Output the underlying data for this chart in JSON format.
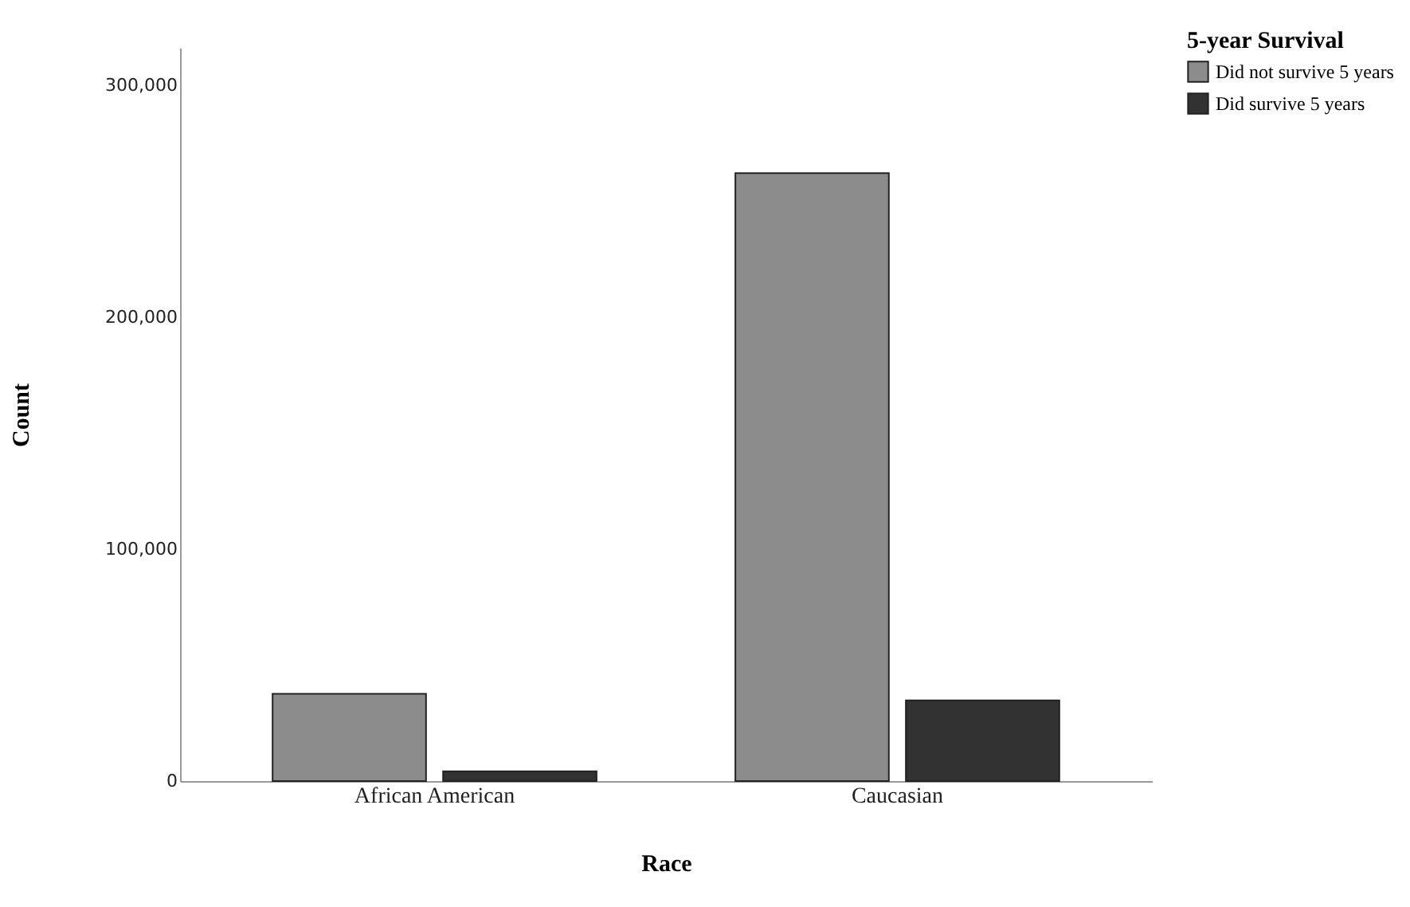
{
  "chart_data": {
    "type": "bar",
    "xlabel": "Race",
    "ylabel": "Count",
    "legend_title": "5-year Survival",
    "categories": [
      "African American",
      "Caucasian"
    ],
    "series": [
      {
        "name": "Did not survive 5 years",
        "color": "#8c8c8c",
        "values": [
          37600,
          262000
        ]
      },
      {
        "name": "Did survive 5 years",
        "color": "#323232",
        "values": [
          4200,
          34800
        ]
      }
    ],
    "ylim": [
      0,
      316000
    ],
    "yticks": [
      {
        "value": 0,
        "label": "0"
      },
      {
        "value": 100000,
        "label": "100,000"
      },
      {
        "value": 200000,
        "label": "200,000"
      },
      {
        "value": 300000,
        "label": "300,000"
      }
    ],
    "grid": false,
    "legend": "top right"
  }
}
